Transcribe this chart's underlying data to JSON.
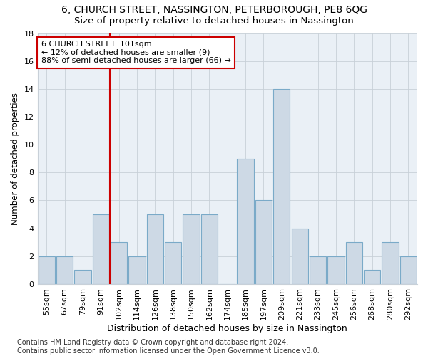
{
  "title1": "6, CHURCH STREET, NASSINGTON, PETERBOROUGH, PE8 6QG",
  "title2": "Size of property relative to detached houses in Nassington",
  "xlabel": "Distribution of detached houses by size in Nassington",
  "ylabel": "Number of detached properties",
  "categories": [
    "55sqm",
    "67sqm",
    "79sqm",
    "91sqm",
    "102sqm",
    "114sqm",
    "126sqm",
    "138sqm",
    "150sqm",
    "162sqm",
    "174sqm",
    "185sqm",
    "197sqm",
    "209sqm",
    "221sqm",
    "233sqm",
    "245sqm",
    "256sqm",
    "268sqm",
    "280sqm",
    "292sqm"
  ],
  "values": [
    2,
    2,
    1,
    5,
    3,
    2,
    5,
    3,
    5,
    5,
    0,
    9,
    6,
    14,
    4,
    2,
    2,
    3,
    1,
    3,
    2
  ],
  "bar_color": "#cdd9e5",
  "bar_edge_color": "#7aaac8",
  "vline_index": 3.5,
  "vline_color": "#cc0000",
  "annotation_line1": "6 CHURCH STREET: 101sqm",
  "annotation_line2": "← 12% of detached houses are smaller (9)",
  "annotation_line3": "88% of semi-detached houses are larger (66) →",
  "annotation_box_color": "#cc0000",
  "ylim": [
    0,
    18
  ],
  "yticks": [
    0,
    2,
    4,
    6,
    8,
    10,
    12,
    14,
    16,
    18
  ],
  "background_color": "#eaf0f6",
  "grid_color": "#c8d0d8",
  "footer": "Contains HM Land Registry data © Crown copyright and database right 2024.\nContains public sector information licensed under the Open Government Licence v3.0.",
  "title1_fontsize": 10,
  "title2_fontsize": 9.5,
  "xlabel_fontsize": 9,
  "ylabel_fontsize": 8.5,
  "tick_fontsize": 8,
  "annotation_fontsize": 8,
  "footer_fontsize": 7
}
